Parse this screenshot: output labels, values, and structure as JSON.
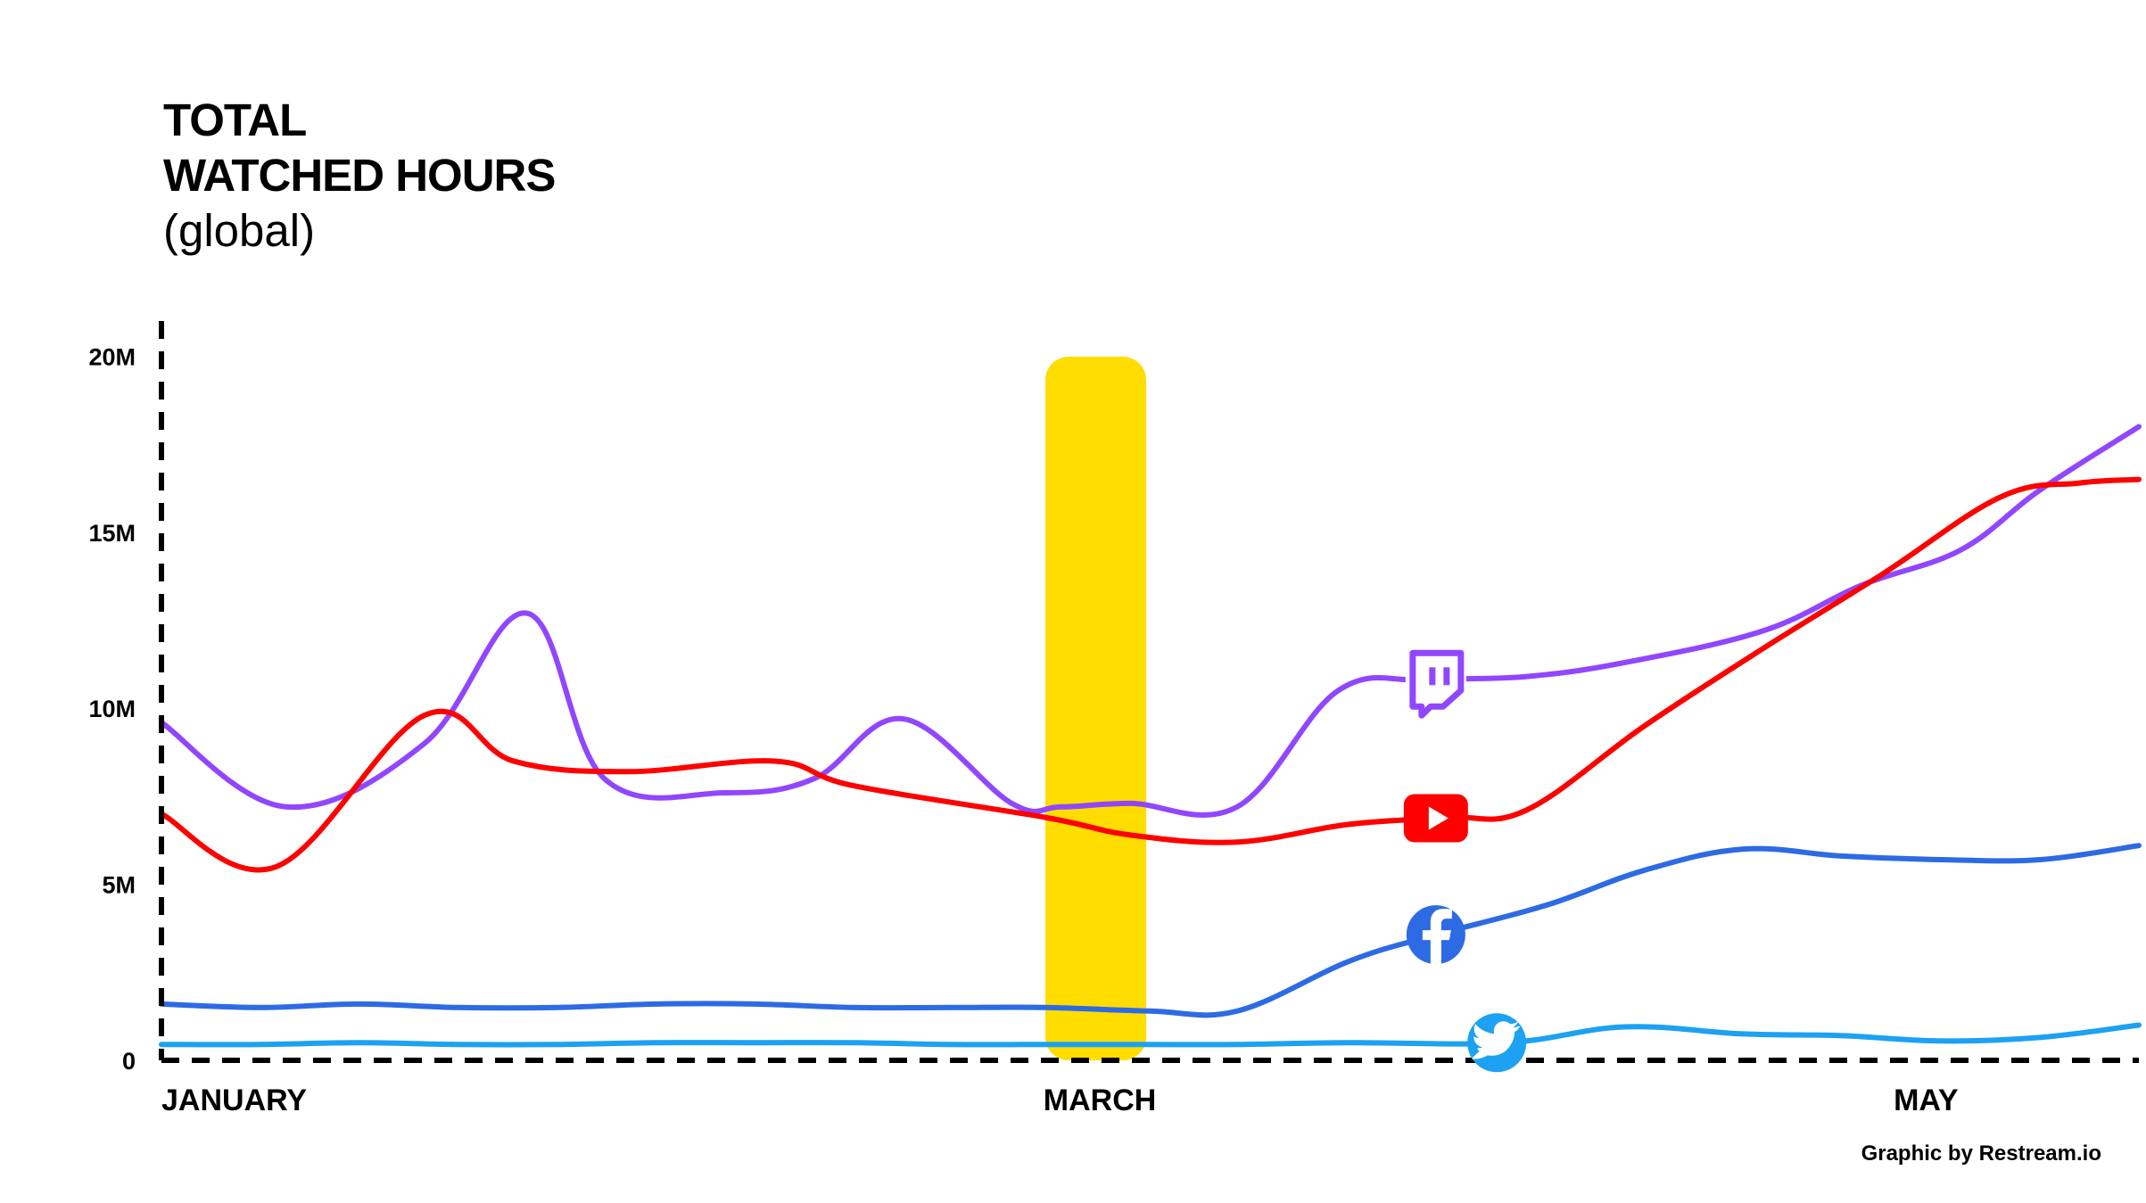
{
  "title": {
    "line1": "TOTAL",
    "line2": "WATCHED HOURS",
    "line3": "(global)"
  },
  "credit": "Graphic by Restream.io",
  "colors": {
    "twitch": "#9146FF",
    "youtube": "#FF0000",
    "facebook": "#2D6BE4",
    "twitter": "#1DA1F2",
    "highlight": "#FFDD00",
    "axis": "#000000"
  },
  "chart_data": {
    "type": "line",
    "title": "TOTAL WATCHED HOURS (global)",
    "xlabel": "",
    "ylabel": "",
    "x_tick_labels": [
      "JANUARY",
      "MARCH",
      "MAY"
    ],
    "x_tick_positions": [
      0,
      0.446,
      0.876
    ],
    "y_tick_labels": [
      "0",
      "5M",
      "10M",
      "15M",
      "20M"
    ],
    "y_tick_values": [
      0,
      5,
      10,
      15,
      20
    ],
    "ylim": [
      0,
      21
    ],
    "highlight_band": {
      "x_start": 0.447,
      "x_end": 0.498,
      "label": "",
      "icon": ""
    },
    "legend": "inline-icons",
    "series": [
      {
        "icon": "twitch-icon",
        "color": "#9146FF",
        "x": [
          0,
          0.063,
          0.133,
          0.185,
          0.224,
          0.285,
          0.33,
          0.375,
          0.43,
          0.455,
          0.49,
          0.544,
          0.595,
          0.64,
          0.69,
          0.74,
          0.81,
          0.86,
          0.91,
          0.95,
          1.0
        ],
        "y": [
          9.6,
          7.2,
          9.0,
          12.7,
          8.0,
          7.6,
          8.0,
          9.7,
          7.3,
          7.2,
          7.3,
          7.2,
          10.5,
          10.8,
          10.9,
          11.3,
          12.2,
          13.5,
          14.5,
          16.2,
          18.0
        ]
      },
      {
        "icon": "youtube-icon",
        "color": "#FF0000",
        "x": [
          0,
          0.058,
          0.133,
          0.178,
          0.236,
          0.31,
          0.35,
          0.447,
          0.49,
          0.544,
          0.6,
          0.65,
          0.69,
          0.75,
          0.81,
          0.87,
          0.93,
          0.97,
          1.0
        ],
        "y": [
          7.0,
          5.5,
          9.8,
          8.5,
          8.2,
          8.5,
          7.8,
          6.9,
          6.4,
          6.2,
          6.7,
          6.9,
          7.1,
          9.5,
          11.7,
          13.8,
          16.0,
          16.4,
          16.5
        ]
      },
      {
        "icon": "facebook-icon",
        "color": "#2D6BE4",
        "x": [
          0,
          0.05,
          0.1,
          0.15,
          0.2,
          0.25,
          0.3,
          0.35,
          0.4,
          0.447,
          0.5,
          0.544,
          0.6,
          0.64,
          0.7,
          0.75,
          0.8,
          0.85,
          0.9,
          0.95,
          1.0
        ],
        "y": [
          1.6,
          1.5,
          1.6,
          1.5,
          1.5,
          1.6,
          1.6,
          1.5,
          1.5,
          1.5,
          1.4,
          1.4,
          2.8,
          3.5,
          4.4,
          5.4,
          6.0,
          5.8,
          5.7,
          5.7,
          6.1
        ]
      },
      {
        "icon": "twitter-icon",
        "color": "#1DA1F2",
        "x": [
          0,
          0.05,
          0.1,
          0.15,
          0.2,
          0.25,
          0.3,
          0.35,
          0.4,
          0.447,
          0.5,
          0.544,
          0.6,
          0.68,
          0.74,
          0.8,
          0.85,
          0.9,
          0.95,
          1.0
        ],
        "y": [
          0.45,
          0.45,
          0.5,
          0.45,
          0.45,
          0.5,
          0.5,
          0.5,
          0.45,
          0.45,
          0.45,
          0.45,
          0.5,
          0.5,
          0.95,
          0.75,
          0.7,
          0.55,
          0.65,
          1.0
        ]
      }
    ]
  }
}
